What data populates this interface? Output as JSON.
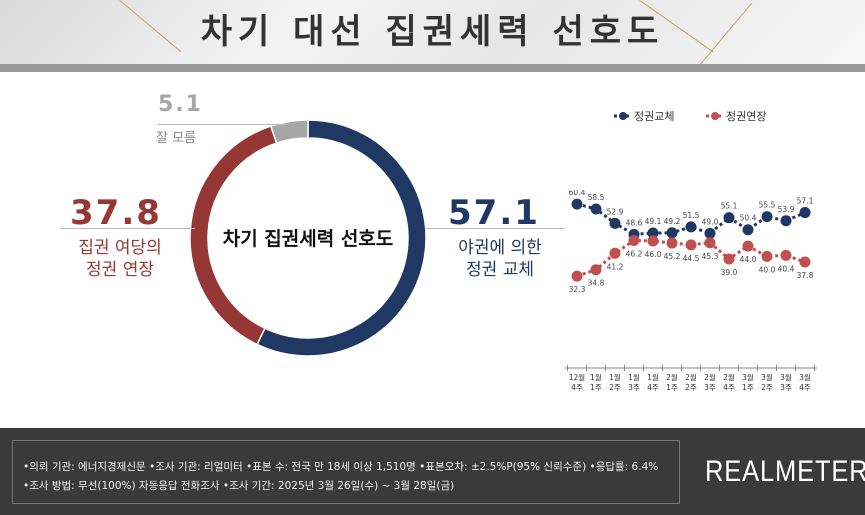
{
  "header": {
    "title": "차기 대선 집권세력 선호도"
  },
  "donut": {
    "center_label": "차기 집권세력 선호도",
    "segments": [
      {
        "name": "야권에 의한 정권 교체",
        "value": 57.1,
        "color": "#1f3864"
      },
      {
        "name": "집권 여당의 정권 연장",
        "value": 37.8,
        "color": "#953735"
      },
      {
        "name": "잘 모름",
        "value": 5.1,
        "color": "#a6a6a6"
      }
    ],
    "change_value": "57.1",
    "change_label_1": "야권에 의한",
    "change_label_2": "정권 교체",
    "extend_value": "37.8",
    "extend_label_1": "집권 여당의",
    "extend_label_2": "정권 연장",
    "unknown_value": "5.1",
    "unknown_label": "잘 모름"
  },
  "chart_data": {
    "type": "line",
    "x": [
      "12월 4주",
      "1월 1주",
      "1월 2주",
      "1월 3주",
      "1월 4주",
      "2월 1주",
      "2월 2주",
      "2월 3주",
      "2월 4주",
      "3월 1주",
      "3월 2주",
      "3월 3주",
      "3월 4주"
    ],
    "x_top": [
      "12월",
      "1월",
      "1월",
      "1월",
      "1월",
      "2월",
      "2월",
      "2월",
      "2월",
      "3월",
      "3월",
      "3월",
      "3월"
    ],
    "x_bottom": [
      "4주",
      "1주",
      "2주",
      "3주",
      "4주",
      "1주",
      "2주",
      "3주",
      "4주",
      "1주",
      "2주",
      "3주",
      "4주"
    ],
    "series": [
      {
        "name": "정권교체",
        "color": "#1f3864",
        "values": [
          60.4,
          58.5,
          52.9,
          48.6,
          49.1,
          49.2,
          51.5,
          49.0,
          55.1,
          50.4,
          55.5,
          53.9,
          57.1
        ]
      },
      {
        "name": "정권연장",
        "color": "#c0504d",
        "values": [
          32.3,
          34.8,
          41.2,
          46.2,
          46.0,
          45.2,
          44.5,
          45.3,
          39.0,
          44.0,
          40.0,
          40.4,
          37.8
        ]
      }
    ],
    "legend": "top",
    "grid": false
  },
  "footer": {
    "line1": "•의뢰 기관: 에너지경제신문 •조사 기관: 리얼미터 •표본 수: 전국 만 18세 이상 1,510명 •표본오차: ±2.5%P(95% 신뢰수준) •응답률: 6.4%",
    "line2": "•조사 방법: 무선(100%) 자동응답 전화조사 •조사 기간: 2025년 3월 26일(수) ~ 3월 28일(금)",
    "brand": "REALMETER"
  }
}
